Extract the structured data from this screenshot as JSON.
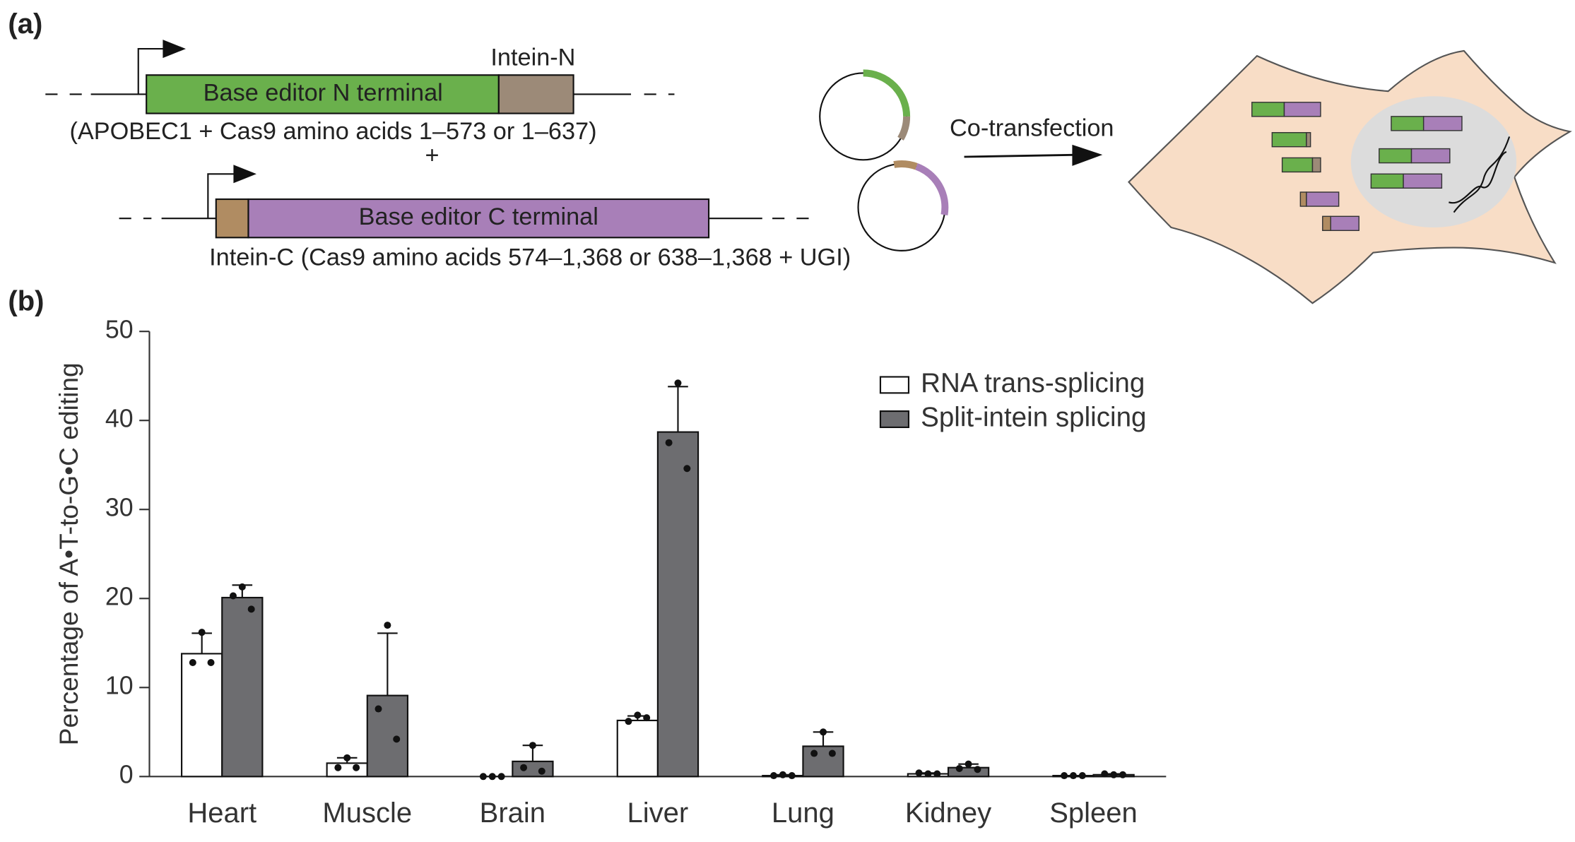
{
  "panels": [
    "(a)",
    "(b)"
  ],
  "panel_a": {
    "intein_n": "Intein-N",
    "n_terminal": "Base editor N terminal",
    "n_description": "(APOBEC1 + Cas9 amino acids 1–573 or 1–637)",
    "plus": "+",
    "c_terminal": "Base editor C terminal",
    "c_description": "Intein-C (Cas9 amino acids 574–1,368 or 638–1,368 + UGI)",
    "arrow_label": "Co-transfection"
  },
  "chart_data": {
    "type": "bar",
    "y_label": "Percentage of A•T-to-G•C editing",
    "categories": [
      "Heart",
      "Muscle",
      "Brain",
      "Liver",
      "Lung",
      "Kidney",
      "Spleen"
    ],
    "series": [
      {
        "name": "RNA trans-splicing",
        "color": "#ffffff",
        "values": [
          13.8,
          1.5,
          0,
          6.3,
          0.1,
          0.3,
          0.1
        ],
        "errors": [
          2.3,
          0.6,
          0,
          0.5,
          0.1,
          0.1,
          0
        ],
        "points": [
          [
            16.2,
            12.8,
            12.8
          ],
          [
            2.1,
            1.0,
            1.0
          ],
          [
            0,
            0,
            0
          ],
          [
            6.9,
            6.2,
            6.6
          ],
          [
            0.2,
            0.1,
            0.1
          ],
          [
            0.3,
            0.4,
            0.3
          ],
          [
            0.1,
            0.1,
            0.1
          ]
        ]
      },
      {
        "name": "Split-intein splicing",
        "color": "#6d6d70",
        "values": [
          20.1,
          9.1,
          1.7,
          38.7,
          3.4,
          1.0,
          0.2
        ],
        "errors": [
          1.4,
          7.0,
          1.8,
          5.1,
          1.6,
          0.4,
          0.1
        ],
        "points": [
          [
            21.3,
            20.3,
            18.8
          ],
          [
            17.0,
            7.6,
            4.2
          ],
          [
            3.5,
            1.0,
            0.6
          ],
          [
            44.2,
            37.5,
            34.6
          ],
          [
            5.0,
            2.6,
            2.6
          ],
          [
            1.4,
            0.9,
            0.8
          ],
          [
            0.2,
            0.3,
            0.2
          ]
        ]
      }
    ],
    "ylim": [
      0,
      50
    ],
    "yticks": [
      0,
      10,
      20,
      30,
      40,
      50
    ],
    "legend": "top-right"
  }
}
